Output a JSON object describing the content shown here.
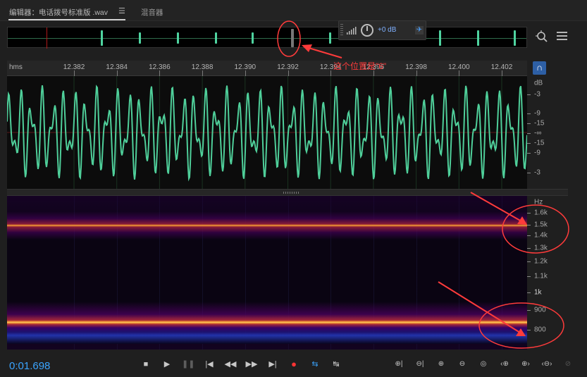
{
  "tabs": [
    {
      "label": "编辑器：电话拨号标准版 .wav"
    },
    {
      "label": "混音器"
    }
  ],
  "hud": {
    "gain": "+0 dB"
  },
  "ruler": {
    "unit": "hms",
    "labels": [
      "12.382",
      "12.384",
      "12.386",
      "12.388",
      "12.390",
      "12.392",
      "12.394",
      "12.396",
      "12.398",
      "12.400",
      "12.402"
    ]
  },
  "wave_scale": {
    "unit": "dB",
    "labels": [
      "-3",
      "-9",
      "-15",
      "-∞",
      "-15",
      "-9",
      "-3"
    ]
  },
  "spec_scale": {
    "unit": "Hz",
    "labels": [
      "1.6k",
      "1.5k",
      "1.4k",
      "1.3k",
      "1.2k",
      "1.1k",
      "1k",
      "900",
      "800"
    ]
  },
  "annotation": {
    "text": "这个位置是\"6\""
  },
  "transport": {
    "time": "0:01.698",
    "buttons": [
      "stop",
      "play",
      "pause",
      "go-to-start",
      "rewind",
      "fast-forward",
      "go-to-end",
      "record",
      "loop",
      "skip-selection"
    ]
  },
  "zoom_tools": [
    "zoom-in-amplitude",
    "zoom-out-amplitude",
    "zoom-in-time",
    "zoom-out-time",
    "zoom-full",
    "zoom-in-left",
    "zoom-in-right",
    "zoom-out-full",
    "zoom-reset"
  ],
  "colors": {
    "waveform": "#4fcf9a",
    "accent": "#3aa4ff",
    "annotation": "#ff3b3b"
  }
}
